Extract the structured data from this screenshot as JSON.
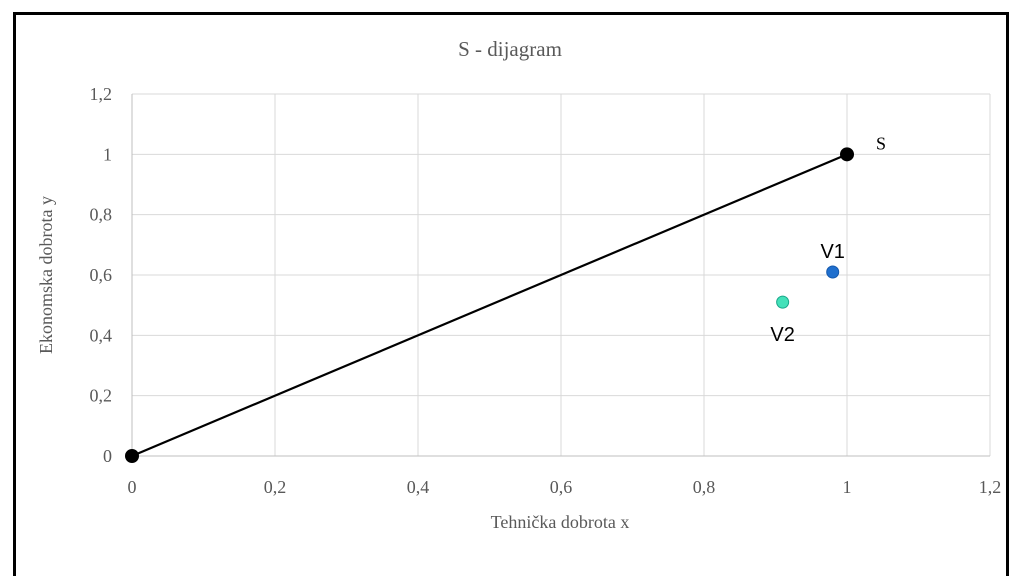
{
  "chart_data": {
    "type": "scatter",
    "title": "S - dijagram",
    "xlabel": "Tehnička dobrota x",
    "ylabel": "Ekonomska dobrota y",
    "xlim": [
      0,
      1.2
    ],
    "ylim": [
      0,
      1.2
    ],
    "x_ticks": [
      0,
      0.2,
      0.4,
      0.6,
      0.8,
      1,
      1.2
    ],
    "x_tick_labels": [
      "0",
      "0,2",
      "0,4",
      "0,6",
      "0,8",
      "1",
      "1,2"
    ],
    "y_ticks": [
      0,
      0.2,
      0.4,
      0.6,
      0.8,
      1,
      1.2
    ],
    "y_tick_labels": [
      "0",
      "0,2",
      "0,4",
      "0,6",
      "0,8",
      "1",
      "1,2"
    ],
    "grid": true,
    "series": [
      {
        "name": "S",
        "kind": "line",
        "color": "#000000",
        "points": [
          {
            "x": 0,
            "y": 0
          },
          {
            "x": 1,
            "y": 1,
            "label": "S"
          }
        ]
      },
      {
        "name": "V1",
        "kind": "point",
        "color": "#1f6fce",
        "points": [
          {
            "x": 0.98,
            "y": 0.61,
            "label": "V1"
          }
        ]
      },
      {
        "name": "V2",
        "kind": "point",
        "color": "#43e1b9",
        "points": [
          {
            "x": 0.91,
            "y": 0.51,
            "label": "V2"
          }
        ]
      }
    ]
  }
}
